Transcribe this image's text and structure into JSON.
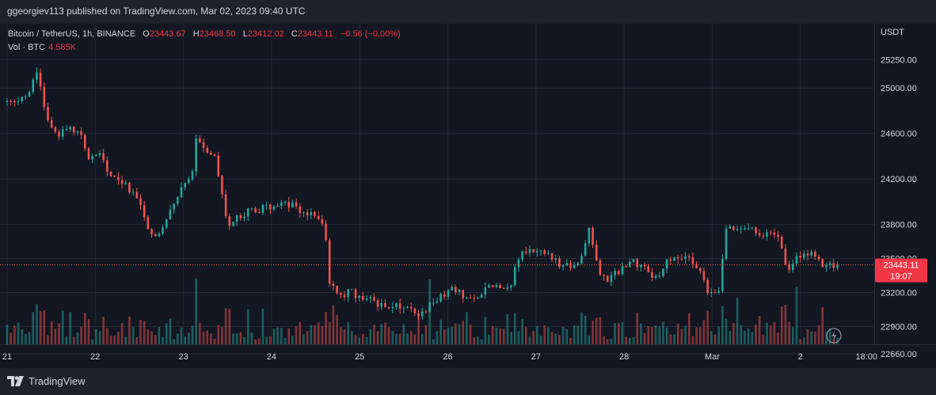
{
  "header": {
    "published_by": "ggeorgiev113 published on TradingView.com, Mar 02, 2023 09:40 UTC"
  },
  "legend": {
    "symbol": "Bitcoin / TetherUS, 1h, BINANCE",
    "o_label": "O",
    "o_value": "23443.67",
    "h_label": "H",
    "h_value": "23468.50",
    "l_label": "L",
    "l_value": "23412.02",
    "c_label": "C",
    "c_value": "23443.11",
    "change": "−0.56 (−0.00%)",
    "vol_label": "Vol · BTC",
    "vol_value": "4.585K"
  },
  "footer": {
    "brand": "TradingView"
  },
  "colors": {
    "background": "#131722",
    "grid": "#232733",
    "up": "#26a69a",
    "down": "#ef5350",
    "text": "#d1d4dc",
    "price_line": "#ef5350"
  },
  "chart_data": {
    "type": "candlestick",
    "title": "Bitcoin / TetherUS, 1h, BINANCE",
    "ylabel": "USDT",
    "ylim": [
      22560,
      25430
    ],
    "y_ticks": [
      "25250.00",
      "25000.00",
      "24600.00",
      "24200.00",
      "23800.00",
      "23500.00",
      "23200.00",
      "22900.00",
      "22660.00"
    ],
    "x_ticks": [
      "21",
      "22",
      "23",
      "24",
      "25",
      "26",
      "27",
      "28",
      "Mar",
      "2",
      "18:00"
    ],
    "current_price": "23443.11",
    "countdown": "19:07",
    "volume_label": "Vol · BTC",
    "keypoints": [
      {
        "t": 21.0,
        "p": 24880
      },
      {
        "t": 21.25,
        "p": 24950
      },
      {
        "t": 21.33,
        "p": 25180
      },
      {
        "t": 21.45,
        "p": 24700
      },
      {
        "t": 21.6,
        "p": 24600
      },
      {
        "t": 21.8,
        "p": 24650
      },
      {
        "t": 21.95,
        "p": 24350
      },
      {
        "t": 22.05,
        "p": 24450
      },
      {
        "t": 22.15,
        "p": 24200
      },
      {
        "t": 22.35,
        "p": 24150
      },
      {
        "t": 22.5,
        "p": 24000
      },
      {
        "t": 22.65,
        "p": 23680
      },
      {
        "t": 22.8,
        "p": 23800
      },
      {
        "t": 22.95,
        "p": 24100
      },
      {
        "t": 23.1,
        "p": 24200
      },
      {
        "t": 23.12,
        "p": 24550
      },
      {
        "t": 23.35,
        "p": 24400
      },
      {
        "t": 23.5,
        "p": 23800
      },
      {
        "t": 23.65,
        "p": 23880
      },
      {
        "t": 23.8,
        "p": 23930
      },
      {
        "t": 24.0,
        "p": 23950
      },
      {
        "t": 24.2,
        "p": 23980
      },
      {
        "t": 24.4,
        "p": 23900
      },
      {
        "t": 24.55,
        "p": 23870
      },
      {
        "t": 24.6,
        "p": 23800
      },
      {
        "t": 24.65,
        "p": 23300
      },
      {
        "t": 24.75,
        "p": 23180
      },
      {
        "t": 24.9,
        "p": 23200
      },
      {
        "t": 25.1,
        "p": 23150
      },
      {
        "t": 25.3,
        "p": 23060
      },
      {
        "t": 25.5,
        "p": 23080
      },
      {
        "t": 25.7,
        "p": 23000
      },
      {
        "t": 25.85,
        "p": 23120
      },
      {
        "t": 26.05,
        "p": 23220
      },
      {
        "t": 26.3,
        "p": 23150
      },
      {
        "t": 26.5,
        "p": 23270
      },
      {
        "t": 26.7,
        "p": 23250
      },
      {
        "t": 26.82,
        "p": 23550
      },
      {
        "t": 27.05,
        "p": 23580
      },
      {
        "t": 27.25,
        "p": 23450
      },
      {
        "t": 27.5,
        "p": 23430
      },
      {
        "t": 27.6,
        "p": 23800
      },
      {
        "t": 27.72,
        "p": 23350
      },
      {
        "t": 27.85,
        "p": 23320
      },
      {
        "t": 28.05,
        "p": 23480
      },
      {
        "t": 28.25,
        "p": 23420
      },
      {
        "t": 28.35,
        "p": 23320
      },
      {
        "t": 28.5,
        "p": 23500
      },
      {
        "t": 28.75,
        "p": 23520
      },
      {
        "t": 28.85,
        "p": 23400
      },
      {
        "t": 28.95,
        "p": 23220
      },
      {
        "t": 29.08,
        "p": 23230
      },
      {
        "t": 29.15,
        "p": 23760
      },
      {
        "t": 29.35,
        "p": 23770
      },
      {
        "t": 29.5,
        "p": 23740
      },
      {
        "t": 29.65,
        "p": 23700
      },
      {
        "t": 29.75,
        "p": 23680
      },
      {
        "t": 29.85,
        "p": 23360
      },
      {
        "t": 29.95,
        "p": 23500
      },
      {
        "t": 30.1,
        "p": 23550
      },
      {
        "t": 30.2,
        "p": 23470
      },
      {
        "t": 30.33,
        "p": 23440
      },
      {
        "t": 30.42,
        "p": 23443
      }
    ]
  }
}
